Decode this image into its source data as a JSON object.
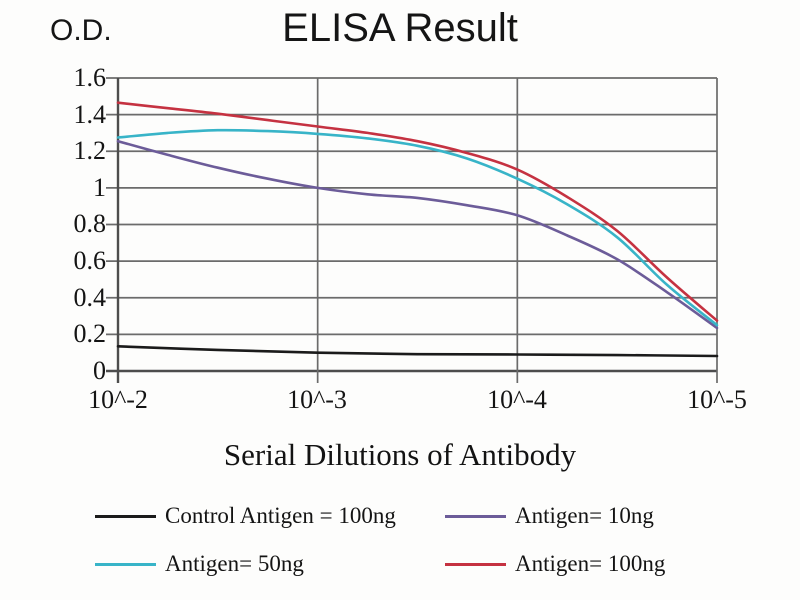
{
  "chart_data": {
    "type": "line",
    "title": "ELISA Result",
    "ylabel": "O.D.",
    "xlabel": "Serial Dilutions of Antibody",
    "x_tick_labels": [
      "10^-2",
      "10^-3",
      "10^-4",
      "10^-5"
    ],
    "y_tick_labels": [
      "1.6",
      "1.4",
      "1.2",
      "1",
      "0.8",
      "0.6",
      "0.4",
      "0.2",
      "0"
    ],
    "ylim": [
      0,
      1.6
    ],
    "xlim": [
      0,
      3
    ],
    "x_scale_note": "x unit: decades of dilution, 0 = 10^-2 ... 3 = 10^-5",
    "grid": true,
    "legend_position": "bottom",
    "grid_color": "#6b6b6b",
    "axis_color": "#4d4d4d",
    "series": [
      {
        "name": "Control Antigen = 100ng",
        "color": "#1b1b1b",
        "points": [
          [
            0,
            0.135
          ],
          [
            0.5,
            0.115
          ],
          [
            1,
            0.1
          ],
          [
            1.5,
            0.092
          ],
          [
            2,
            0.09
          ],
          [
            2.5,
            0.087
          ],
          [
            3,
            0.082
          ]
        ]
      },
      {
        "name": "Antigen= 10ng",
        "color": "#6c5c99",
        "points": [
          [
            0,
            1.255
          ],
          [
            0.25,
            1.18
          ],
          [
            0.5,
            1.11
          ],
          [
            0.75,
            1.05
          ],
          [
            1,
            1.0
          ],
          [
            1.25,
            0.965
          ],
          [
            1.5,
            0.945
          ],
          [
            1.75,
            0.905
          ],
          [
            2,
            0.85
          ],
          [
            2.25,
            0.74
          ],
          [
            2.5,
            0.61
          ],
          [
            2.75,
            0.43
          ],
          [
            3,
            0.235
          ]
        ]
      },
      {
        "name": "Antigen= 50ng",
        "color": "#38b4c8",
        "points": [
          [
            0,
            1.275
          ],
          [
            0.25,
            1.3
          ],
          [
            0.5,
            1.315
          ],
          [
            0.75,
            1.31
          ],
          [
            1,
            1.295
          ],
          [
            1.25,
            1.27
          ],
          [
            1.5,
            1.23
          ],
          [
            1.75,
            1.16
          ],
          [
            2,
            1.05
          ],
          [
            2.25,
            0.91
          ],
          [
            2.5,
            0.73
          ],
          [
            2.75,
            0.47
          ],
          [
            3,
            0.25
          ]
        ]
      },
      {
        "name": "Antigen= 100ng",
        "color": "#c53241",
        "points": [
          [
            0,
            1.465
          ],
          [
            0.25,
            1.435
          ],
          [
            0.5,
            1.405
          ],
          [
            0.75,
            1.37
          ],
          [
            1,
            1.335
          ],
          [
            1.25,
            1.3
          ],
          [
            1.5,
            1.255
          ],
          [
            1.75,
            1.19
          ],
          [
            2,
            1.1
          ],
          [
            2.25,
            0.95
          ],
          [
            2.5,
            0.765
          ],
          [
            2.75,
            0.51
          ],
          [
            3,
            0.275
          ]
        ]
      }
    ]
  }
}
